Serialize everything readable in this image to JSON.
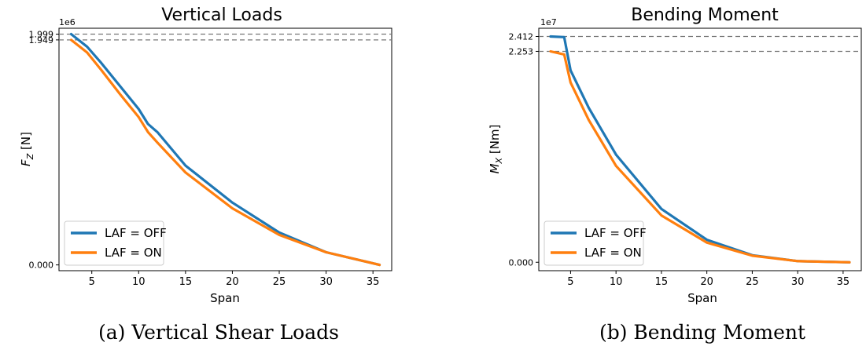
{
  "chart_data": [
    {
      "type": "line",
      "title": "Vertical Loads",
      "caption": "(a) Vertical Shear Loads",
      "xlabel": "Span",
      "ylabel_main": "F",
      "ylabel_sub": "Z",
      "ylabel_unit": " [N]",
      "yscale_label": "1e6",
      "xlim": [
        1.5,
        37
      ],
      "ylim": [
        -0.05,
        2.05
      ],
      "x_ticks": [
        5,
        10,
        15,
        20,
        25,
        30,
        35
      ],
      "y_ticks": [
        {
          "value": 0.0,
          "label": "0.000"
        },
        {
          "value": 1.949,
          "label": "1.949"
        },
        {
          "value": 1.999,
          "label": "1.999"
        }
      ],
      "hlines": [
        1.999,
        1.949
      ],
      "legend_position": "lower-left",
      "series": [
        {
          "name": "LAF = OFF",
          "color": "#1f77b4",
          "x": [
            2.8,
            4.5,
            6,
            8,
            10,
            11,
            12,
            15,
            20,
            25,
            30,
            35.7
          ],
          "y": [
            1.999,
            1.89,
            1.75,
            1.55,
            1.35,
            1.22,
            1.15,
            0.86,
            0.54,
            0.28,
            0.11,
            0.0
          ]
        },
        {
          "name": "LAF = ON",
          "color": "#ff7f0e",
          "x": [
            2.8,
            4.5,
            6,
            8,
            10,
            11,
            12,
            15,
            20,
            25,
            30,
            35.7
          ],
          "y": [
            1.949,
            1.84,
            1.69,
            1.48,
            1.28,
            1.15,
            1.06,
            0.8,
            0.49,
            0.26,
            0.11,
            0.0
          ]
        }
      ]
    },
    {
      "type": "line",
      "title": "Bending Moment",
      "caption": "(b) Bending Moment",
      "xlabel": "Span",
      "ylabel_main": "M",
      "ylabel_sub": "X",
      "ylabel_unit": " [Nm]",
      "yscale_label": "1e7",
      "xlim": [
        1.5,
        37
      ],
      "ylim": [
        -0.09,
        2.5
      ],
      "x_ticks": [
        5,
        10,
        15,
        20,
        25,
        30,
        35
      ],
      "y_ticks": [
        {
          "value": 0.0,
          "label": "0.000"
        },
        {
          "value": 2.253,
          "label": "2.253"
        },
        {
          "value": 2.412,
          "label": "2.412"
        }
      ],
      "hlines": [
        2.412,
        2.253
      ],
      "legend_position": "lower-left",
      "series": [
        {
          "name": "LAF = OFF",
          "color": "#1f77b4",
          "x": [
            2.8,
            4.3,
            5,
            7,
            10,
            15,
            20,
            25,
            30,
            35.7
          ],
          "y": [
            2.412,
            2.405,
            2.05,
            1.65,
            1.15,
            0.57,
            0.24,
            0.075,
            0.012,
            0.0
          ]
        },
        {
          "name": "LAF = ON",
          "color": "#ff7f0e",
          "x": [
            2.8,
            4.3,
            5,
            7,
            10,
            15,
            20,
            25,
            30,
            35.7
          ],
          "y": [
            2.253,
            2.22,
            1.92,
            1.52,
            1.03,
            0.5,
            0.21,
            0.07,
            0.012,
            0.0
          ]
        }
      ]
    }
  ]
}
